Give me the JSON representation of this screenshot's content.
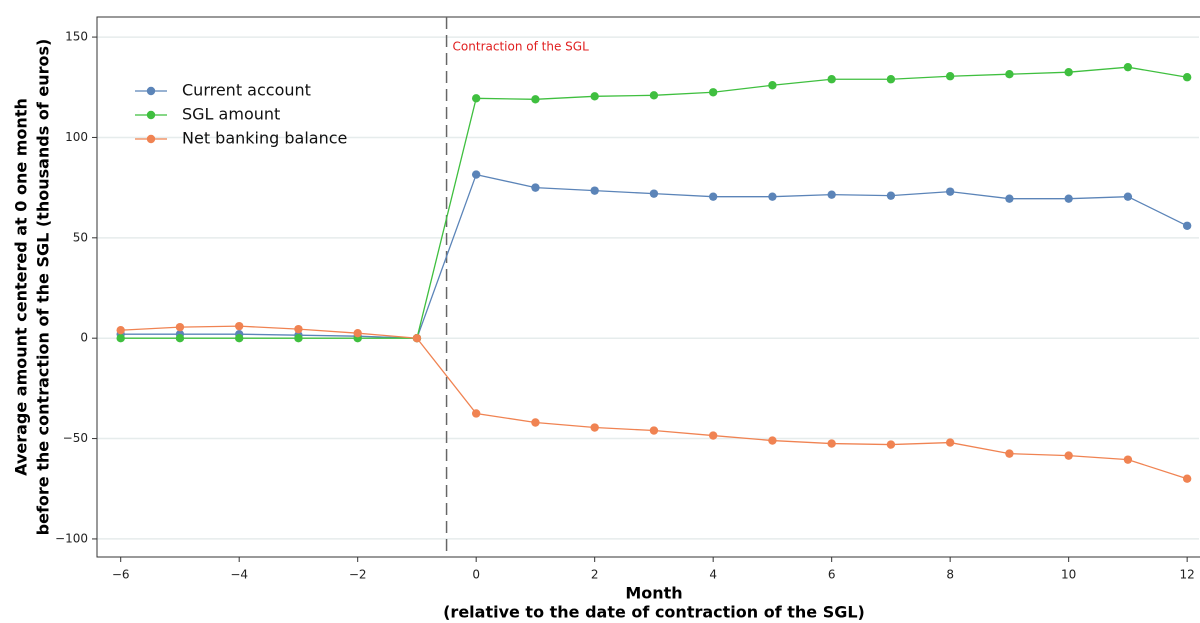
{
  "chart_data": {
    "type": "line",
    "xlabel": [
      "Month",
      "(relative to the date of contraction of the SGL)"
    ],
    "ylabel": [
      "Average amount centered at 0 one month",
      "before the contraction of the SGL (thousands of euros)"
    ],
    "x": [
      -6,
      -5,
      -4,
      -3,
      -2,
      -1,
      0,
      1,
      2,
      3,
      4,
      5,
      6,
      7,
      8,
      9,
      10,
      11,
      12
    ],
    "series": [
      {
        "name": "Current account",
        "color": "#5b84b8",
        "values": [
          2,
          2,
          2,
          1.5,
          1,
          0,
          81.5,
          75,
          73.5,
          72,
          70.5,
          70.5,
          71.5,
          71,
          73,
          69.5,
          69.5,
          70.5,
          56
        ]
      },
      {
        "name": "SGL amount",
        "color": "#3fbf3f",
        "values": [
          0,
          0,
          0,
          0,
          0,
          0,
          119.5,
          119,
          120.5,
          121,
          122.5,
          126,
          129,
          129,
          130.5,
          131.5,
          132.5,
          135,
          130
        ]
      },
      {
        "name": "Net banking balance",
        "color": "#f08352",
        "values": [
          4,
          5.5,
          6,
          4.5,
          2.5,
          0,
          -37.5,
          -42,
          -44.5,
          -46,
          -48.5,
          -51,
          -52.5,
          -53,
          -52,
          -57.5,
          -58.5,
          -60.5,
          -70
        ]
      }
    ],
    "xlim": [
      -6.4,
      12.2
    ],
    "ylim": [
      -109,
      160
    ],
    "xticks": [
      {
        "value": -6,
        "label": "−6"
      },
      {
        "value": -4,
        "label": "−4"
      },
      {
        "value": -2,
        "label": "−2"
      },
      0,
      2,
      4,
      6,
      8,
      10,
      12
    ],
    "yticks": [
      {
        "value": -100,
        "label": "−100"
      },
      {
        "value": -50,
        "label": "−50"
      },
      0,
      50,
      100,
      150
    ],
    "grid": true,
    "legend": "upper left",
    "annotations": [
      {
        "x": -0.5,
        "text": "Contraction of the SGL",
        "color": "#e02020"
      }
    ]
  }
}
